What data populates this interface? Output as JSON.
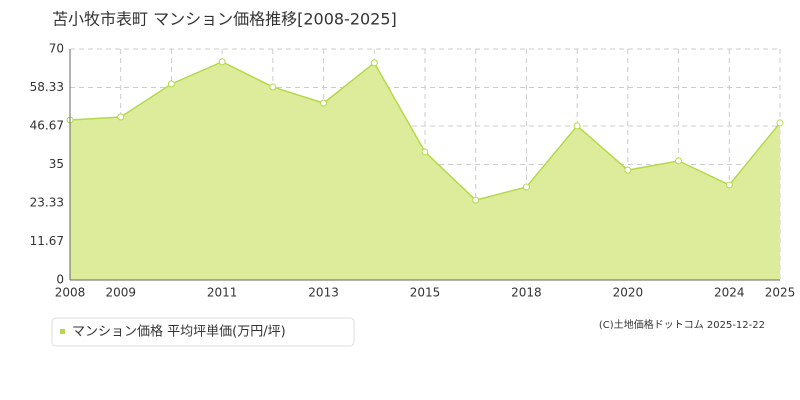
{
  "chart_data": {
    "type": "area",
    "title": "苫小牧市表町 マンション価格推移[2008-2025]",
    "categories": [
      "2008",
      "2009",
      null,
      "2011",
      null,
      "2013",
      null,
      "2015",
      null,
      "2018",
      null,
      "2020",
      null,
      "2024",
      "2025"
    ],
    "series": [
      {
        "name": "マンション価格 平均坪単価(万円/坪)",
        "color": "#b5d94a",
        "fill": "#dcec9a",
        "values": [
          48.5,
          49.4,
          59.4,
          66.1,
          58.5,
          53.6,
          65.8,
          38.8,
          24.2,
          28.2,
          46.7,
          33.3,
          36.1,
          28.8,
          47.6
        ]
      }
    ],
    "ylim": [
      0,
      70
    ],
    "yticks": [
      0,
      11.67,
      23.33,
      35,
      46.67,
      58.33,
      70
    ],
    "grid": true,
    "credit": "(C)土地価格ドットコム 2025-12-22"
  }
}
